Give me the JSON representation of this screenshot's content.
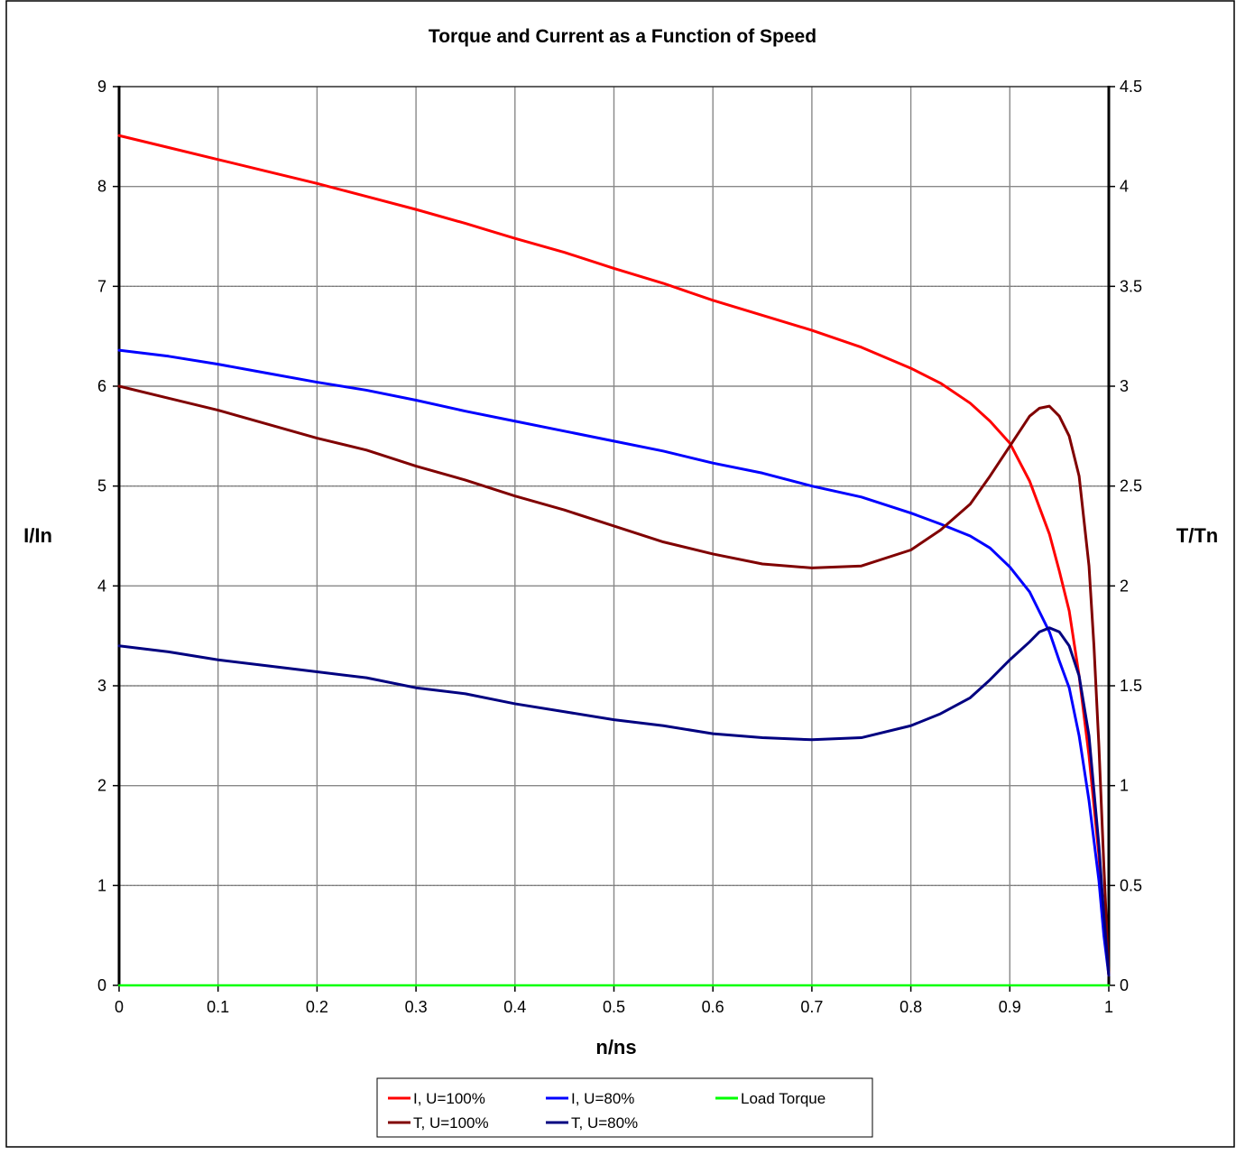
{
  "chart_data": {
    "type": "line",
    "title": "Torque and Current as a Function of Speed",
    "xlabel": "n/ns",
    "ylabel_left": "I/In",
    "ylabel_right": "T/Tn",
    "xlim": [
      0,
      1
    ],
    "ylim_left": [
      0,
      9
    ],
    "ylim_right": [
      0,
      4.5
    ],
    "x_ticks": [
      "0",
      "0.1",
      "0.2",
      "0.3",
      "0.4",
      "0.5",
      "0.6",
      "0.7",
      "0.8",
      "0.9",
      "1"
    ],
    "y_left_ticks": [
      "0",
      "1",
      "2",
      "3",
      "4",
      "5",
      "6",
      "7",
      "8",
      "9"
    ],
    "y_right_ticks": [
      "0",
      "0.5",
      "1",
      "1.5",
      "2",
      "2.5",
      "3",
      "3.5",
      "4",
      "4.5"
    ],
    "grid": true,
    "legend_position": "bottom",
    "series": [
      {
        "name": "I, U=100%",
        "color": "#ff0000",
        "axis": "left",
        "points": [
          [
            0,
            8.51
          ],
          [
            0.05,
            8.39
          ],
          [
            0.1,
            8.27
          ],
          [
            0.15,
            8.15
          ],
          [
            0.2,
            8.03
          ],
          [
            0.25,
            7.9
          ],
          [
            0.3,
            7.77
          ],
          [
            0.35,
            7.63
          ],
          [
            0.4,
            7.48
          ],
          [
            0.45,
            7.34
          ],
          [
            0.5,
            7.18
          ],
          [
            0.55,
            7.03
          ],
          [
            0.6,
            6.86
          ],
          [
            0.65,
            6.71
          ],
          [
            0.7,
            6.56
          ],
          [
            0.75,
            6.39
          ],
          [
            0.8,
            6.18
          ],
          [
            0.83,
            6.03
          ],
          [
            0.86,
            5.83
          ],
          [
            0.88,
            5.65
          ],
          [
            0.9,
            5.43
          ],
          [
            0.92,
            5.05
          ],
          [
            0.94,
            4.52
          ],
          [
            0.95,
            4.15
          ],
          [
            0.96,
            3.75
          ],
          [
            0.97,
            3.1
          ],
          [
            0.98,
            2.3
          ],
          [
            0.99,
            1.3
          ],
          [
            0.995,
            0.6
          ],
          [
            1,
            0.1
          ]
        ]
      },
      {
        "name": "I, U=80%",
        "color": "#0000ff",
        "axis": "left",
        "points": [
          [
            0,
            6.36
          ],
          [
            0.05,
            6.3
          ],
          [
            0.1,
            6.22
          ],
          [
            0.15,
            6.13
          ],
          [
            0.2,
            6.04
          ],
          [
            0.25,
            5.96
          ],
          [
            0.3,
            5.86
          ],
          [
            0.35,
            5.75
          ],
          [
            0.4,
            5.65
          ],
          [
            0.45,
            5.55
          ],
          [
            0.5,
            5.45
          ],
          [
            0.55,
            5.35
          ],
          [
            0.6,
            5.23
          ],
          [
            0.65,
            5.13
          ],
          [
            0.7,
            5.0
          ],
          [
            0.75,
            4.89
          ],
          [
            0.8,
            4.73
          ],
          [
            0.83,
            4.62
          ],
          [
            0.86,
            4.5
          ],
          [
            0.88,
            4.38
          ],
          [
            0.9,
            4.19
          ],
          [
            0.92,
            3.94
          ],
          [
            0.94,
            3.54
          ],
          [
            0.95,
            3.25
          ],
          [
            0.96,
            2.98
          ],
          [
            0.97,
            2.5
          ],
          [
            0.98,
            1.85
          ],
          [
            0.99,
            1.05
          ],
          [
            0.995,
            0.5
          ],
          [
            1,
            0.1
          ]
        ]
      },
      {
        "name": "Load Torque",
        "color": "#00ff00",
        "axis": "right",
        "points": [
          [
            0,
            0
          ],
          [
            1,
            0
          ]
        ]
      },
      {
        "name": "T, U=100%",
        "color": "#800000",
        "axis": "right",
        "points": [
          [
            0,
            3.0
          ],
          [
            0.05,
            2.94
          ],
          [
            0.1,
            2.88
          ],
          [
            0.15,
            2.81
          ],
          [
            0.2,
            2.74
          ],
          [
            0.25,
            2.68
          ],
          [
            0.3,
            2.6
          ],
          [
            0.35,
            2.53
          ],
          [
            0.4,
            2.45
          ],
          [
            0.45,
            2.38
          ],
          [
            0.5,
            2.3
          ],
          [
            0.55,
            2.22
          ],
          [
            0.6,
            2.16
          ],
          [
            0.65,
            2.11
          ],
          [
            0.7,
            2.09
          ],
          [
            0.75,
            2.1
          ],
          [
            0.8,
            2.18
          ],
          [
            0.83,
            2.28
          ],
          [
            0.86,
            2.41
          ],
          [
            0.88,
            2.55
          ],
          [
            0.9,
            2.7
          ],
          [
            0.92,
            2.85
          ],
          [
            0.93,
            2.89
          ],
          [
            0.94,
            2.9
          ],
          [
            0.95,
            2.85
          ],
          [
            0.96,
            2.75
          ],
          [
            0.97,
            2.55
          ],
          [
            0.98,
            2.1
          ],
          [
            0.985,
            1.7
          ],
          [
            0.99,
            1.2
          ],
          [
            0.995,
            0.6
          ],
          [
            1,
            0.05
          ]
        ]
      },
      {
        "name": "T, U=80%",
        "color": "#000080",
        "axis": "right",
        "points": [
          [
            0,
            1.7
          ],
          [
            0.05,
            1.67
          ],
          [
            0.1,
            1.63
          ],
          [
            0.15,
            1.6
          ],
          [
            0.2,
            1.57
          ],
          [
            0.25,
            1.54
          ],
          [
            0.3,
            1.49
          ],
          [
            0.35,
            1.46
          ],
          [
            0.4,
            1.41
          ],
          [
            0.45,
            1.37
          ],
          [
            0.5,
            1.33
          ],
          [
            0.55,
            1.3
          ],
          [
            0.6,
            1.26
          ],
          [
            0.65,
            1.24
          ],
          [
            0.7,
            1.23
          ],
          [
            0.75,
            1.24
          ],
          [
            0.8,
            1.3
          ],
          [
            0.83,
            1.36
          ],
          [
            0.86,
            1.44
          ],
          [
            0.88,
            1.53
          ],
          [
            0.9,
            1.63
          ],
          [
            0.92,
            1.72
          ],
          [
            0.93,
            1.77
          ],
          [
            0.94,
            1.79
          ],
          [
            0.95,
            1.77
          ],
          [
            0.96,
            1.7
          ],
          [
            0.97,
            1.55
          ],
          [
            0.98,
            1.25
          ],
          [
            0.99,
            0.7
          ],
          [
            0.995,
            0.35
          ],
          [
            1,
            0.05
          ]
        ]
      }
    ],
    "legend_order": [
      "I, U=100%",
      "I, U=80%",
      "Load Torque",
      "T, U=100%",
      "T, U=80%"
    ]
  }
}
